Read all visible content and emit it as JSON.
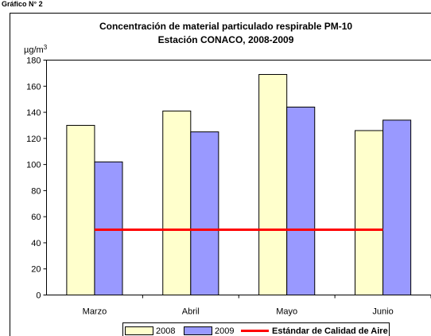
{
  "header_label": "Gráfico N° 2",
  "chart_data": {
    "type": "bar",
    "title_line1": "Concentración de material particulado respirable PM-10",
    "title_line2": "Estación CONACO, 2008-2009",
    "unit_label": "µg/m",
    "unit_superscript": "3",
    "categories": [
      "Marzo",
      "Abril",
      "Mayo",
      "Junio"
    ],
    "series": [
      {
        "name": "2008",
        "color": "#ffffcc",
        "values": [
          130,
          141,
          169,
          126
        ]
      },
      {
        "name": "2009",
        "color": "#9999ff",
        "values": [
          102,
          125,
          144,
          134
        ]
      }
    ],
    "reference_line": {
      "name": "Estándar de Calidad de Aire",
      "value": 50,
      "color": "#ff0000"
    },
    "ylim": [
      0,
      180
    ],
    "ytick_step": 20,
    "yticks": [
      "0",
      "20",
      "40",
      "60",
      "80",
      "100",
      "120",
      "140",
      "160",
      "180"
    ],
    "grid": false,
    "legend_position": "bottom"
  }
}
